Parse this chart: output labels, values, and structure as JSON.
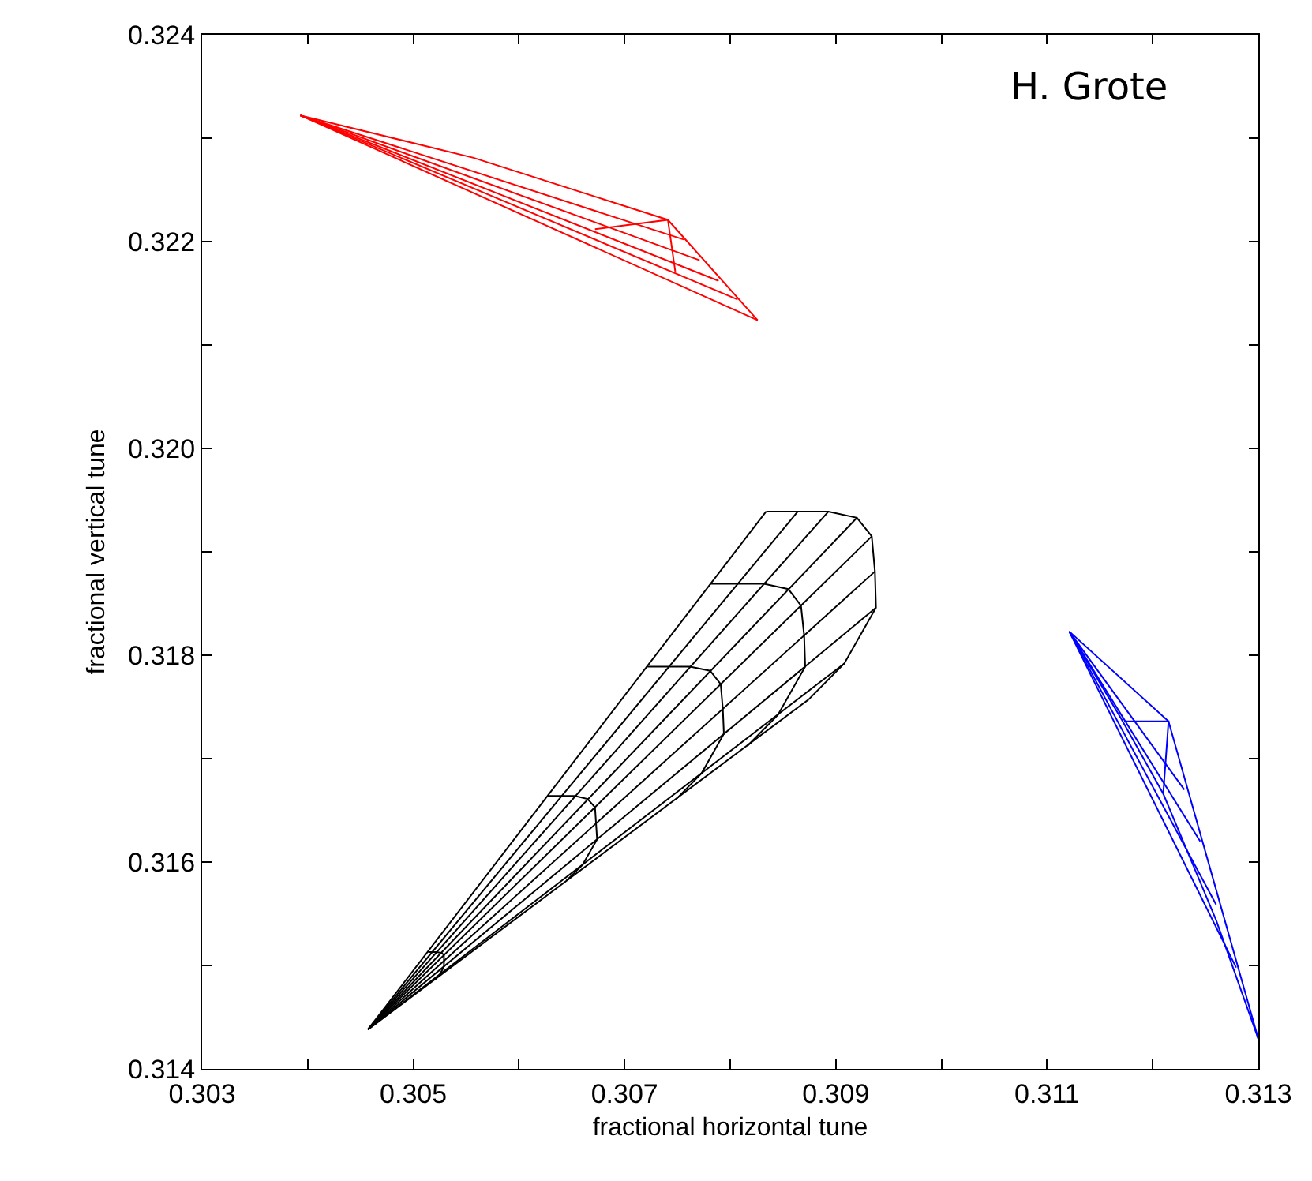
{
  "chart_data": {
    "type": "line",
    "xlabel": "fractional horizontal tune",
    "ylabel": "fractional vertical tune",
    "annotations": [
      "H. Grote"
    ],
    "xlim": [
      0.303,
      0.313
    ],
    "xticks": [
      0.303,
      {
        "value": 0.304,
        "label": null
      },
      0.305,
      {
        "value": 0.306,
        "label": null
      },
      0.307,
      {
        "value": 0.308,
        "label": null
      },
      0.309,
      {
        "value": 0.31,
        "label": null
      },
      0.311,
      {
        "value": 0.312,
        "label": null
      },
      0.313
    ],
    "ylim": [
      0.314,
      0.324
    ],
    "yticks": [
      0.314,
      {
        "value": 0.315,
        "label": null
      },
      0.316,
      {
        "value": 0.317,
        "label": null
      },
      0.318,
      {
        "value": 0.319,
        "label": null
      },
      {
        "value": 0.32,
        "label": "0.320"
      },
      {
        "value": 0.321,
        "label": null
      },
      0.322,
      {
        "value": 0.323,
        "label": null
      },
      0.324
    ],
    "line_style": "solid",
    "series": [
      {
        "color": "#000000",
        "x": [
          0.30457,
          0.30834,
          null,
          0.30457,
          0.30864,
          null,
          0.30457,
          0.30893,
          null,
          0.30457,
          0.3092,
          null,
          0.30457,
          0.30934,
          null,
          0.30457,
          0.30937,
          null,
          0.30457,
          0.30938,
          null,
          0.30457,
          0.30908,
          null,
          0.30457,
          0.30874,
          null,
          0.30514,
          0.30518,
          0.30522,
          0.30527,
          0.30529,
          0.30529,
          0.30529,
          0.30525,
          0.3052,
          null,
          0.30627,
          0.3064,
          0.30653,
          0.30665,
          0.30672,
          0.30673,
          0.30674,
          0.3066,
          0.30645,
          null,
          0.30721,
          0.30742,
          0.30762,
          0.30781,
          0.30791,
          0.30793,
          0.30794,
          0.30773,
          0.30749,
          null,
          0.30781,
          0.30807,
          0.30832,
          0.30855,
          0.30867,
          0.3087,
          0.30871,
          0.30845,
          0.30816,
          null,
          0.30834,
          0.30864,
          0.30893,
          0.3092,
          0.30934,
          0.30937,
          0.30938,
          0.30908,
          0.30874
        ],
        "values": [
          0.31438,
          0.31939,
          null,
          0.31438,
          0.31939,
          null,
          0.31438,
          0.31939,
          null,
          0.31438,
          0.31933,
          null,
          0.31438,
          0.31915,
          null,
          0.31438,
          0.31881,
          null,
          0.31438,
          0.31846,
          null,
          0.31438,
          0.31792,
          null,
          0.31438,
          0.31757,
          null,
          0.31513,
          0.31513,
          0.31513,
          0.31512,
          0.3151,
          0.31505,
          0.31499,
          0.31491,
          0.31486,
          null,
          0.31664,
          0.31664,
          0.31664,
          0.31661,
          0.31653,
          0.31637,
          0.31622,
          0.31597,
          0.31582,
          null,
          0.31789,
          0.31789,
          0.31789,
          0.31785,
          0.31772,
          0.31748,
          0.31724,
          0.31686,
          0.31661,
          null,
          0.31869,
          0.31869,
          0.31869,
          0.31864,
          0.31848,
          0.31819,
          0.31789,
          0.31742,
          0.31712,
          null,
          0.31939,
          0.31939,
          0.31939,
          0.31933,
          0.31915,
          0.31881,
          0.31846,
          0.31792,
          0.31757
        ]
      },
      {
        "color": "#ff0000",
        "x": [
          0.30393,
          0.30557,
          0.30741,
          0.30826,
          null,
          0.30393,
          0.30756,
          null,
          0.30393,
          0.30771,
          null,
          0.30393,
          0.30789,
          null,
          0.30393,
          0.30807,
          null,
          0.30393,
          0.30826,
          null,
          0.30672,
          0.30741,
          0.30748
        ],
        "values": [
          0.32322,
          0.32281,
          0.32221,
          0.32124,
          null,
          0.32322,
          0.32202,
          null,
          0.32322,
          0.32182,
          null,
          0.32322,
          0.32162,
          null,
          0.32322,
          0.32144,
          null,
          0.32322,
          0.32124,
          null,
          0.32212,
          0.32221,
          0.32171
        ]
      },
      {
        "color": "#0000ff",
        "x": [
          0.31121,
          0.31215,
          0.313,
          null,
          0.31121,
          0.3123,
          null,
          0.31121,
          0.31245,
          null,
          0.31121,
          0.3126,
          null,
          0.31121,
          0.31279,
          null,
          0.31121,
          0.3117,
          0.3121,
          0.3126,
          0.313,
          null,
          0.31173,
          0.31215,
          0.3121
        ],
        "values": [
          0.31823,
          0.31736,
          0.31429,
          null,
          0.31823,
          0.3167,
          null,
          0.31823,
          0.3162,
          null,
          0.31823,
          0.31559,
          null,
          0.31823,
          0.31498,
          null,
          0.31823,
          0.31739,
          0.31666,
          0.31544,
          0.31429,
          null,
          0.31736,
          0.31736,
          0.31666
        ]
      }
    ]
  }
}
